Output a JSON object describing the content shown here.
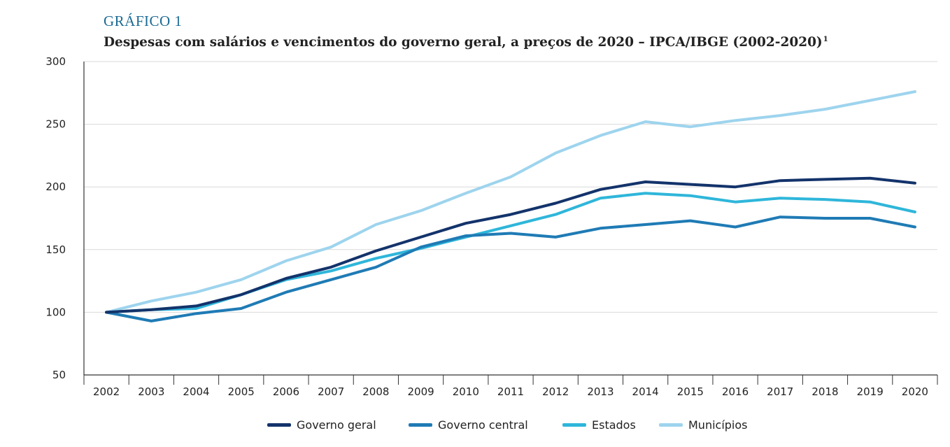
{
  "header": {
    "kicker": "GRÁFICO 1",
    "title": "Despesas com salários e vencimentos do governo geral, a preços de 2020 – IPCA/IBGE (2002-2020)",
    "title_note": "1"
  },
  "chart_data": {
    "type": "line",
    "title": "Despesas com salários e vencimentos do governo geral, a preços de 2020 – IPCA/IBGE (2002-2020)",
    "xlabel": "",
    "ylabel": "",
    "ylim": [
      50,
      300
    ],
    "yticks": [
      50,
      100,
      150,
      200,
      250,
      300
    ],
    "grid": true,
    "legend_position": "bottom",
    "categories": [
      "2002",
      "2003",
      "2004",
      "2005",
      "2006",
      "2007",
      "2008",
      "2009",
      "2010",
      "2011",
      "2012",
      "2013",
      "2014",
      "2015",
      "2016",
      "2017",
      "2018",
      "2019",
      "2020"
    ],
    "series": [
      {
        "name": "Governo geral",
        "color": "#13336b",
        "values": [
          100,
          102,
          105,
          114,
          127,
          136,
          149,
          160,
          171,
          178,
          187,
          198,
          204,
          202,
          200,
          205,
          206,
          207,
          203
        ]
      },
      {
        "name": "Governo central",
        "color": "#1f7bb5",
        "values": [
          100,
          93,
          99,
          103,
          116,
          126,
          136,
          152,
          161,
          163,
          160,
          167,
          170,
          173,
          168,
          176,
          175,
          175,
          168
        ]
      },
      {
        "name": "Estados",
        "color": "#2fb6da",
        "values": [
          100,
          102,
          103,
          114,
          126,
          133,
          143,
          151,
          160,
          169,
          178,
          191,
          195,
          193,
          188,
          191,
          190,
          188,
          180
        ]
      },
      {
        "name": "Municípios",
        "color": "#9ed4ee",
        "values": [
          100,
          109,
          116,
          126,
          141,
          152,
          170,
          181,
          195,
          208,
          227,
          241,
          252,
          248,
          253,
          257,
          262,
          269,
          276
        ]
      }
    ]
  }
}
